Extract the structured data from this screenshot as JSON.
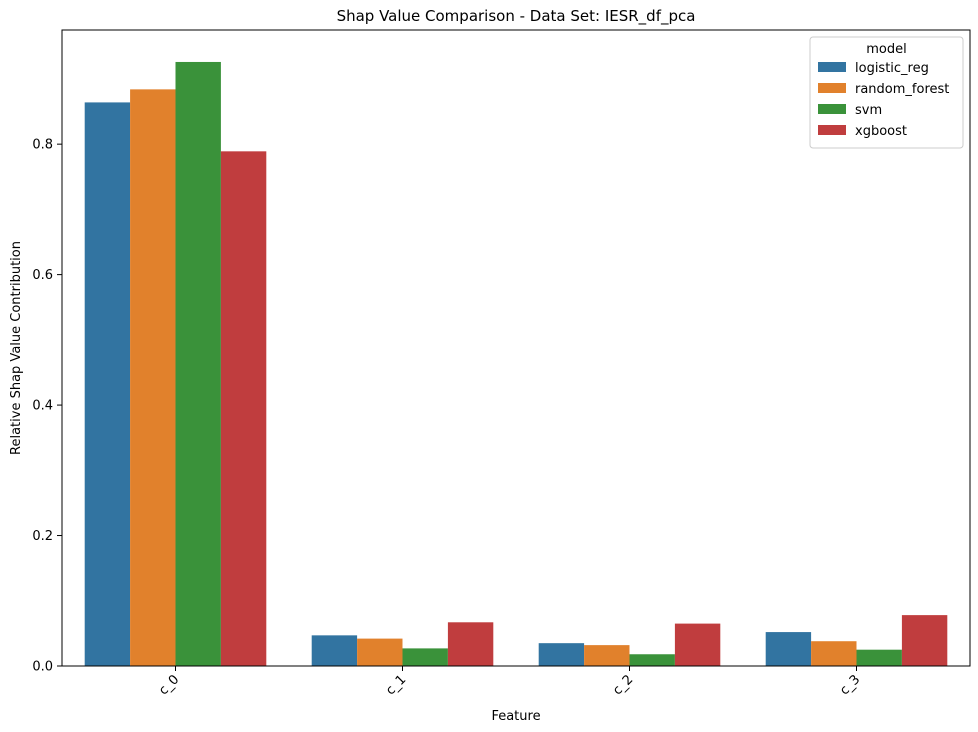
{
  "chart_data": {
    "type": "bar",
    "title": "Shap Value Comparison - Data Set: IESR_df_pca",
    "xlabel": "Feature",
    "ylabel": "Relative Shap Value Contribution",
    "categories": [
      "c_0",
      "c_1",
      "c_2",
      "c_3"
    ],
    "ylim": [
      0,
      0.975
    ],
    "yticks": [
      0.0,
      0.2,
      0.4,
      0.6,
      0.8
    ],
    "ytick_labels": [
      "0.0",
      "0.2",
      "0.4",
      "0.6",
      "0.8"
    ],
    "grid": false,
    "legend": {
      "title": "model",
      "placement": "top-right"
    },
    "series": [
      {
        "name": "logistic_reg",
        "color": "#3274a1",
        "values": [
          0.864,
          0.047,
          0.035,
          0.052
        ]
      },
      {
        "name": "random_forest",
        "color": "#e1812c",
        "values": [
          0.884,
          0.042,
          0.032,
          0.038
        ]
      },
      {
        "name": "svm",
        "color": "#3a923a",
        "values": [
          0.926,
          0.027,
          0.018,
          0.025
        ]
      },
      {
        "name": "xgboost",
        "color": "#c03d3e",
        "values": [
          0.789,
          0.067,
          0.065,
          0.078
        ]
      }
    ]
  }
}
